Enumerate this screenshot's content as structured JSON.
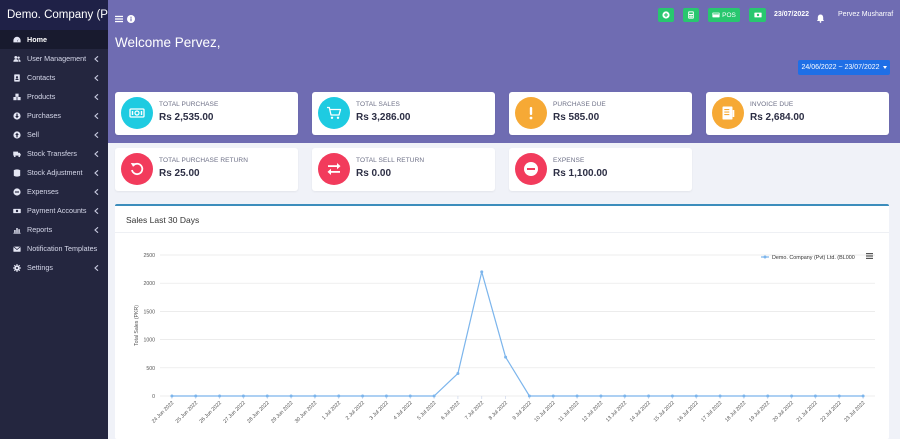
{
  "brand": "Demo. Company (Pvt)",
  "sidebar": {
    "items": [
      {
        "label": "Home",
        "icon": "dashboard-icon",
        "active": true,
        "chevron": false
      },
      {
        "label": "User Management",
        "icon": "users-icon",
        "chevron": true
      },
      {
        "label": "Contacts",
        "icon": "address-book-icon",
        "chevron": true
      },
      {
        "label": "Products",
        "icon": "cubes-icon",
        "chevron": true
      },
      {
        "label": "Purchases",
        "icon": "download-icon",
        "chevron": true
      },
      {
        "label": "Sell",
        "icon": "upload-icon",
        "chevron": true
      },
      {
        "label": "Stock Transfers",
        "icon": "truck-icon",
        "chevron": true
      },
      {
        "label": "Stock Adjustment",
        "icon": "database-icon",
        "chevron": true
      },
      {
        "label": "Expenses",
        "icon": "minus-circle-icon",
        "chevron": true
      },
      {
        "label": "Payment Accounts",
        "icon": "money-icon",
        "chevron": true
      },
      {
        "label": "Reports",
        "icon": "bar-chart-icon",
        "chevron": true
      },
      {
        "label": "Notification Templates",
        "icon": "envelope-icon",
        "chevron": false
      },
      {
        "label": "Settings",
        "icon": "cog-icon",
        "chevron": true
      }
    ]
  },
  "topbar": {
    "pos_label": "POS",
    "date": "23/07/2022",
    "user": "Pervez Musharraf"
  },
  "welcome": "Welcome Pervez,",
  "date_range": "24/06/2022 ~ 23/07/2022",
  "cards": [
    {
      "label": "TOTAL PURCHASE",
      "value": "Rs 2,535.00",
      "color": "#1ecbe1",
      "icon": "cash-icon"
    },
    {
      "label": "TOTAL SALES",
      "value": "Rs 3,286.00",
      "color": "#1ecbe1",
      "icon": "cart-icon"
    },
    {
      "label": "PURCHASE DUE",
      "value": "Rs 585.00",
      "color": "#f6a935",
      "icon": "exclamation-icon"
    },
    {
      "label": "INVOICE DUE",
      "value": "Rs 2,684.00",
      "color": "#f6a935",
      "icon": "invoice-icon"
    },
    {
      "label": "TOTAL PURCHASE RETURN",
      "value": "Rs 25.00",
      "color": "#f23b5c",
      "icon": "undo-icon"
    },
    {
      "label": "TOTAL SELL RETURN",
      "value": "Rs 0.00",
      "color": "#f23b5c",
      "icon": "exchange-icon"
    },
    {
      "label": "EXPENSE",
      "value": "Rs 1,100.00",
      "color": "#f23b5c",
      "icon": "minus-circle-icon"
    }
  ],
  "chart_panel": {
    "title": "Sales Last 30 Days"
  },
  "chart_data": {
    "type": "line",
    "ylabel": "Total Sales (PKR)",
    "ylim": [
      0,
      2500
    ],
    "yticks": [
      "0",
      "500",
      "1000",
      "1500",
      "2000",
      "2500"
    ],
    "legend_position": "top-right",
    "grid": true,
    "categories": [
      "24 Jun 2022",
      "25 Jun 2022",
      "26 Jun 2022",
      "27 Jun 2022",
      "28 Jun 2022",
      "29 Jun 2022",
      "30 Jun 2022",
      "1 Jul 2022",
      "2 Jul 2022",
      "3 Jul 2022",
      "4 Jul 2022",
      "5 Jul 2022",
      "6 Jul 2022",
      "7 Jul 2022",
      "8 Jul 2022",
      "9 Jul 2022",
      "10 Jul 2022",
      "11 Jul 2022",
      "12 Jul 2022",
      "13 Jul 2022",
      "14 Jul 2022",
      "15 Jul 2022",
      "16 Jul 2022",
      "17 Jul 2022",
      "18 Jul 2022",
      "19 Jul 2022",
      "20 Jul 2022",
      "21 Jul 2022",
      "22 Jul 2022",
      "23 Jul 2022"
    ],
    "series": [
      {
        "name": "Demo. Company (Pvt) Ltd. (BL000",
        "color": "#7cb5ec",
        "values": [
          0,
          0,
          0,
          0,
          0,
          0,
          0,
          0,
          0,
          0,
          0,
          0,
          400,
          2200,
          690,
          0,
          0,
          0,
          0,
          0,
          0,
          0,
          0,
          0,
          0,
          0,
          0,
          0,
          0,
          0
        ]
      }
    ]
  }
}
